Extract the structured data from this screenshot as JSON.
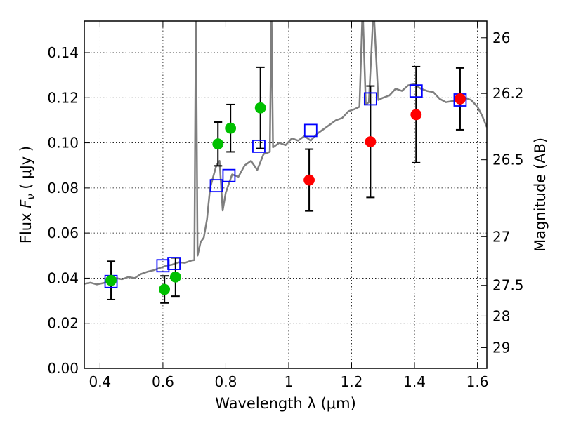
{
  "chart_data": {
    "type": "scatter",
    "title": "",
    "xlabel": "Wavelength  λ (μm)",
    "ylabel": "Flux  F_ν  ( μJy )",
    "ylabel_right": "Magnitude (AB)",
    "xlim": [
      0.35,
      1.63
    ],
    "ylim": [
      0.0,
      0.154
    ],
    "grid": true,
    "x_ticks": [
      0.4,
      0.6,
      0.8,
      1.0,
      1.2,
      1.4,
      1.6
    ],
    "x_tick_labels": [
      "0.4",
      "0.6",
      "0.8",
      "1",
      "1.2",
      "1.4",
      "1.6"
    ],
    "y_ticks": [
      0.0,
      0.02,
      0.04,
      0.06,
      0.08,
      0.1,
      0.12,
      0.14
    ],
    "y_tick_labels": [
      "0.00",
      "0.02",
      "0.04",
      "0.06",
      "0.08",
      "0.10",
      "0.12",
      "0.14"
    ],
    "right_ticks": [
      {
        "label": "26",
        "flux": 0.1466
      },
      {
        "label": "26.2",
        "flux": 0.1219
      },
      {
        "label": "26.5",
        "flux": 0.0925
      },
      {
        "label": "27",
        "flux": 0.0584
      },
      {
        "label": "27.5",
        "flux": 0.0368
      },
      {
        "label": "28",
        "flux": 0.0232
      },
      {
        "label": "29",
        "flux": 0.0092
      }
    ],
    "colors": {
      "model": "#7f7f7f",
      "green": "#00c000",
      "red": "#ff0000",
      "square": "#0000ff",
      "errorbar": "#000000",
      "grid": "#000000"
    },
    "series": [
      {
        "kind": "line",
        "points": [
          [
            0.35,
            0.0375
          ],
          [
            0.37,
            0.038
          ],
          [
            0.39,
            0.0372
          ],
          [
            0.41,
            0.0378
          ],
          [
            0.43,
            0.0385
          ],
          [
            0.45,
            0.04
          ],
          [
            0.47,
            0.0395
          ],
          [
            0.49,
            0.0405
          ],
          [
            0.51,
            0.04
          ],
          [
            0.53,
            0.0418
          ],
          [
            0.55,
            0.0428
          ],
          [
            0.57,
            0.0435
          ],
          [
            0.59,
            0.0445
          ],
          [
            0.61,
            0.0455
          ],
          [
            0.63,
            0.046
          ],
          [
            0.65,
            0.047
          ],
          [
            0.67,
            0.0468
          ],
          [
            0.69,
            0.0478
          ],
          [
            0.7,
            0.048
          ],
          [
            0.705,
            0.16
          ],
          [
            0.71,
            0.05
          ],
          [
            0.72,
            0.056
          ],
          [
            0.73,
            0.058
          ],
          [
            0.74,
            0.066
          ],
          [
            0.75,
            0.08
          ],
          [
            0.76,
            0.085
          ],
          [
            0.77,
            0.09
          ],
          [
            0.78,
            0.092
          ],
          [
            0.79,
            0.07
          ],
          [
            0.8,
            0.078
          ],
          [
            0.82,
            0.086
          ],
          [
            0.84,
            0.085
          ],
          [
            0.86,
            0.09
          ],
          [
            0.88,
            0.092
          ],
          [
            0.9,
            0.088
          ],
          [
            0.92,
            0.095
          ],
          [
            0.94,
            0.096
          ],
          [
            0.945,
            0.16
          ],
          [
            0.95,
            0.098
          ],
          [
            0.97,
            0.1
          ],
          [
            0.99,
            0.099
          ],
          [
            1.01,
            0.102
          ],
          [
            1.03,
            0.101
          ],
          [
            1.05,
            0.103
          ],
          [
            1.07,
            0.101
          ],
          [
            1.09,
            0.104
          ],
          [
            1.11,
            0.106
          ],
          [
            1.13,
            0.108
          ],
          [
            1.15,
            0.11
          ],
          [
            1.17,
            0.111
          ],
          [
            1.19,
            0.114
          ],
          [
            1.21,
            0.115
          ],
          [
            1.225,
            0.116
          ],
          [
            1.235,
            0.16
          ],
          [
            1.245,
            0.117
          ],
          [
            1.255,
            0.118
          ],
          [
            1.27,
            0.16
          ],
          [
            1.285,
            0.119
          ],
          [
            1.3,
            0.12
          ],
          [
            1.32,
            0.121
          ],
          [
            1.34,
            0.124
          ],
          [
            1.36,
            0.123
          ],
          [
            1.38,
            0.1255
          ],
          [
            1.4,
            0.126
          ],
          [
            1.42,
            0.124
          ],
          [
            1.44,
            0.123
          ],
          [
            1.46,
            0.1225
          ],
          [
            1.48,
            0.1195
          ],
          [
            1.5,
            0.118
          ],
          [
            1.52,
            0.1185
          ],
          [
            1.54,
            0.119
          ],
          [
            1.56,
            0.12
          ],
          [
            1.58,
            0.119
          ],
          [
            1.6,
            0.116
          ],
          [
            1.615,
            0.112
          ],
          [
            1.63,
            0.107
          ]
        ]
      },
      {
        "kind": "squares",
        "points": [
          [
            0.435,
            0.0385
          ],
          [
            0.6,
            0.0455
          ],
          [
            0.635,
            0.0465
          ],
          [
            0.77,
            0.081
          ],
          [
            0.81,
            0.0855
          ],
          [
            0.905,
            0.0985
          ],
          [
            1.07,
            0.1055
          ],
          [
            1.26,
            0.1195
          ],
          [
            1.405,
            0.123
          ],
          [
            1.545,
            0.119
          ]
        ]
      },
      {
        "kind": "circles_green",
        "points": [
          [
            0.435,
            0.039
          ],
          [
            0.605,
            0.035
          ],
          [
            0.64,
            0.0405
          ],
          [
            0.775,
            0.0995
          ],
          [
            0.815,
            0.1065
          ],
          [
            0.91,
            0.1155
          ]
        ],
        "errors": [
          0.0085,
          0.006,
          0.0085,
          0.0097,
          0.0105,
          0.018
        ]
      },
      {
        "kind": "circles_red",
        "points": [
          [
            1.065,
            0.0835
          ],
          [
            1.26,
            0.1005
          ],
          [
            1.405,
            0.1125
          ],
          [
            1.545,
            0.1195
          ]
        ],
        "errors": [
          0.0137,
          0.0247,
          0.0213,
          0.0137
        ]
      }
    ]
  }
}
